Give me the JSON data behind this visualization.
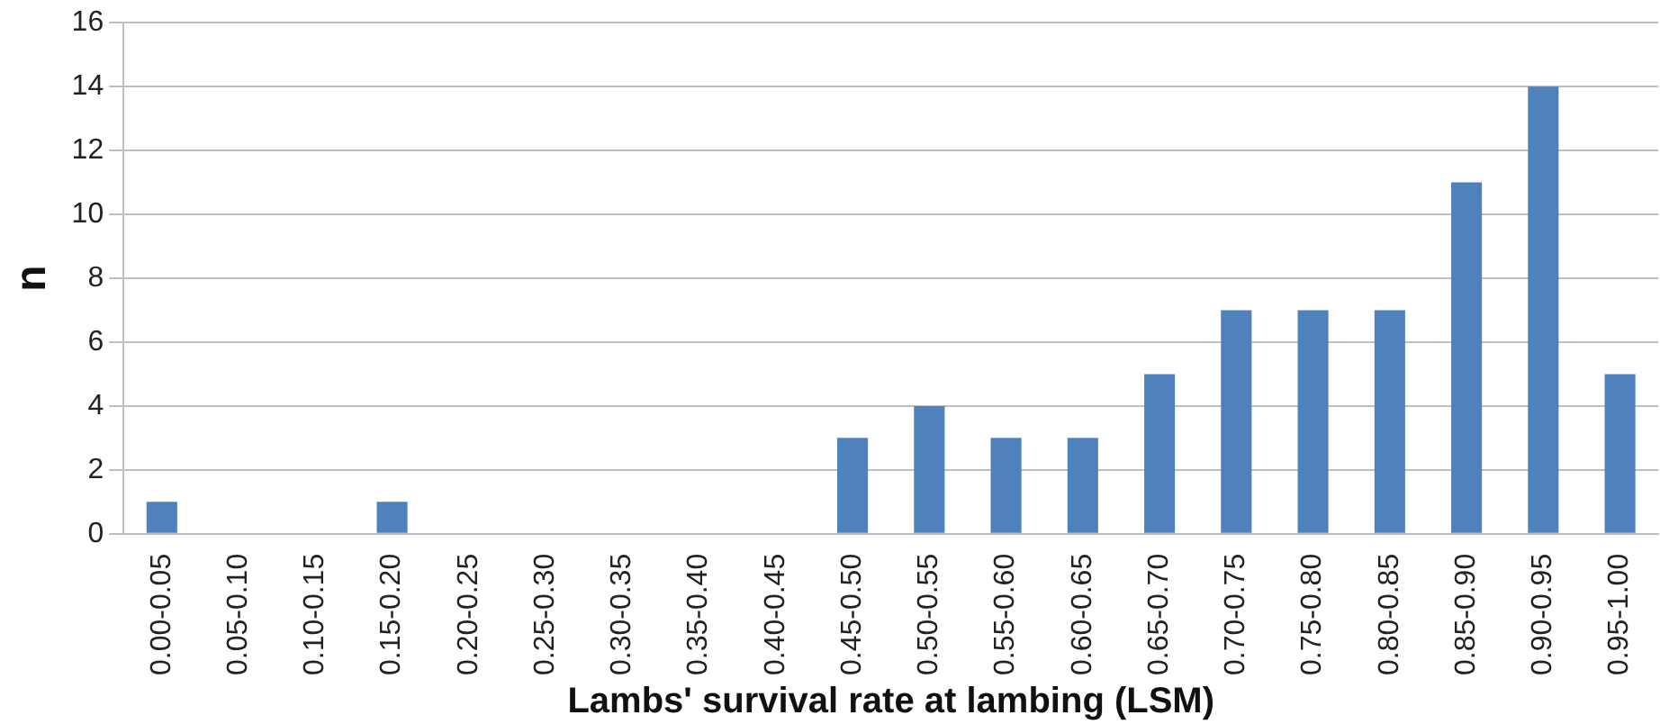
{
  "chart_data": {
    "type": "bar",
    "xlabel": "Lambs' survival rate at lambing (LSM)",
    "ylabel": "n",
    "categories": [
      "0.00-0.05",
      "0.05-0.10",
      "0.10-0.15",
      "0.15-0.20",
      "0.20-0.25",
      "0.25-0.30",
      "0.30-0.35",
      "0.35-0.40",
      "0.40-0.45",
      "0.45-0.50",
      "0.50-0.55",
      "0.55-0.60",
      "0.60-0.65",
      "0.65-0.70",
      "0.70-0.75",
      "0.75-0.80",
      "0.80-0.85",
      "0.85-0.90",
      "0.90-0.95",
      "0.95-1.00"
    ],
    "values": [
      1,
      0,
      0,
      1,
      0,
      0,
      0,
      0,
      0,
      3,
      4,
      3,
      3,
      5,
      7,
      7,
      7,
      11,
      14,
      5
    ],
    "color": "#4f81bd",
    "ylim": [
      0,
      16
    ],
    "yticks": [
      0,
      2,
      4,
      6,
      8,
      10,
      12,
      14,
      16
    ],
    "grid": "y",
    "legend": false
  }
}
